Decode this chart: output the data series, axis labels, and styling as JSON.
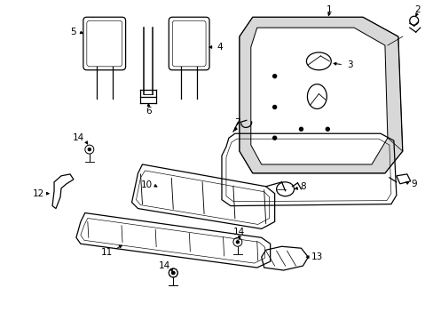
{
  "background_color": "#ffffff",
  "line_color": "#000000",
  "figsize": [
    4.89,
    3.6
  ],
  "dpi": 100,
  "gray_fill": "#d8d8d8"
}
